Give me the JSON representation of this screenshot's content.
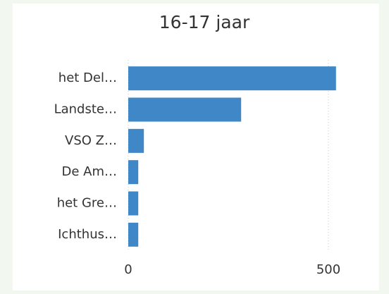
{
  "chart_data": {
    "type": "bar",
    "orientation": "horizontal",
    "title": "16-17 jaar",
    "categories": [
      "het Del…",
      "Landste…",
      "VSO Z…",
      "De Am…",
      "het Gre…",
      "Ichthus…"
    ],
    "values": [
      519,
      282,
      39,
      25,
      25,
      25
    ],
    "color": "#3f87c7",
    "xlim": [
      0,
      600
    ],
    "xticks": [
      0,
      500
    ],
    "grid": true
  }
}
